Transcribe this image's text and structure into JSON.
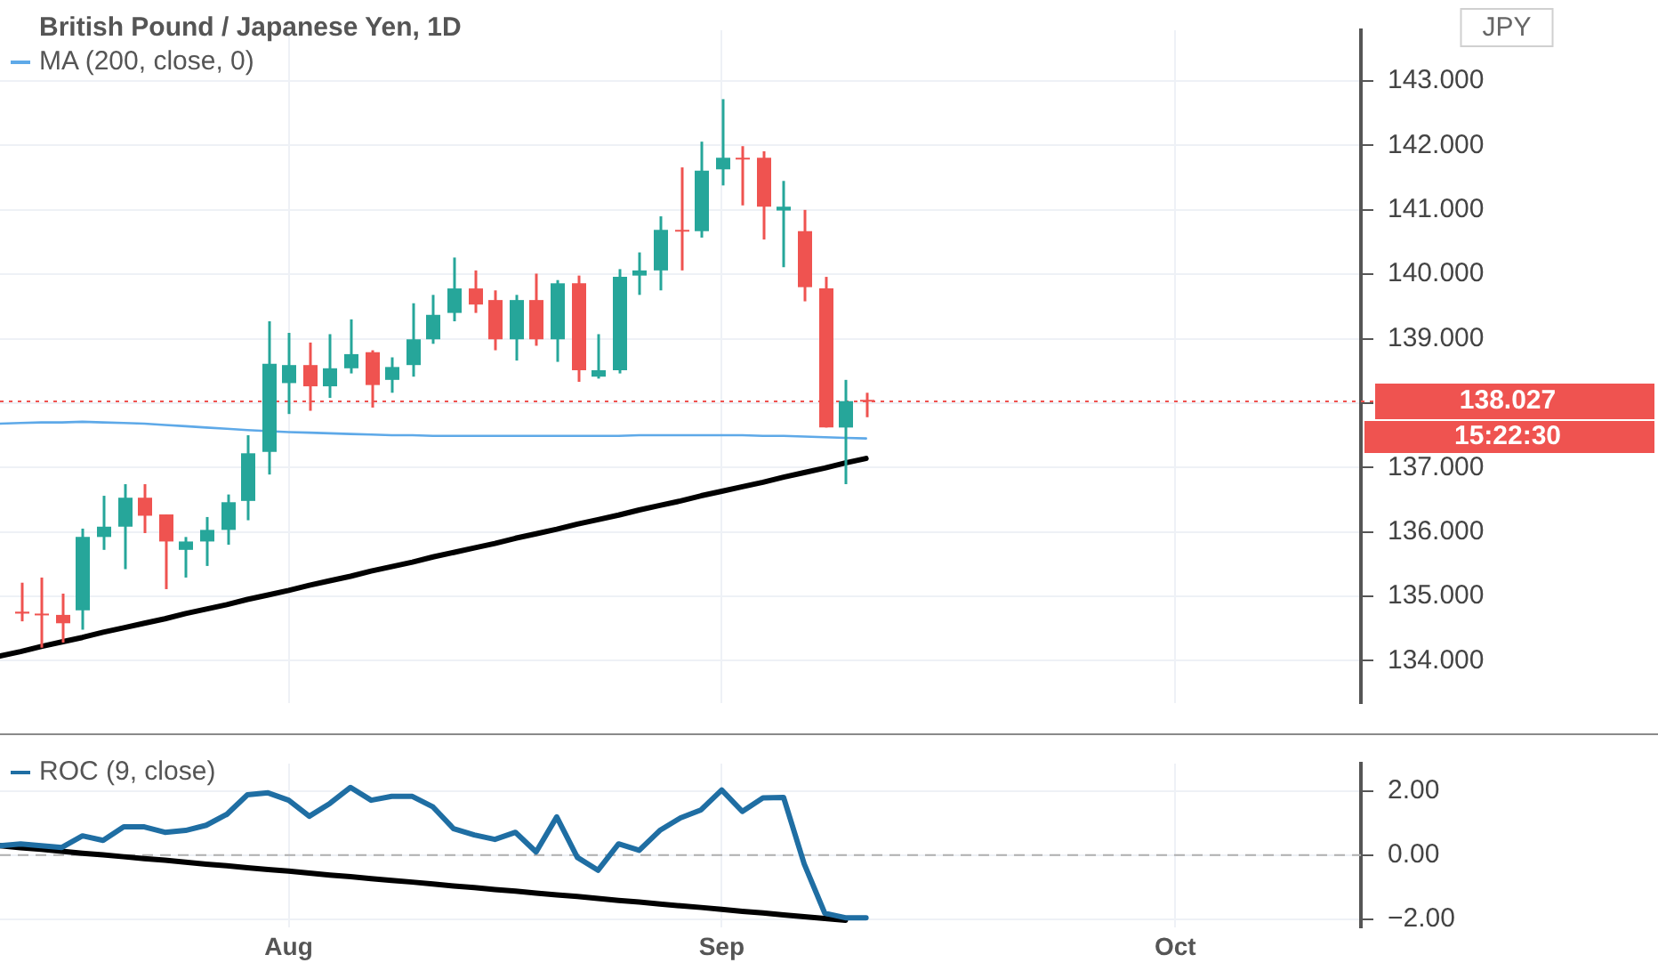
{
  "chart_data": [
    {
      "type": "candlestick",
      "title": "British Pound / Japanese Yen, 1D",
      "ylabel": "JPY",
      "categories": [
        null,
        null,
        null,
        null,
        null,
        null,
        null,
        null,
        null,
        null,
        null,
        null,
        null,
        null,
        null,
        null,
        null,
        null,
        null,
        null,
        null,
        null,
        null,
        null,
        null,
        null,
        null,
        null,
        null,
        null,
        null,
        null,
        null,
        null,
        null,
        null,
        null,
        null,
        null,
        null,
        null,
        null,
        null,
        null,
        null,
        null,
        null,
        null,
        null,
        null,
        null,
        null,
        null,
        null,
        null,
        null,
        null,
        null,
        null,
        null,
        null,
        null,
        null,
        null,
        null,
        null,
        null
      ],
      "ohlc": [
        null,
        [
          134.76,
          135.21,
          134.61,
          134.73
        ],
        [
          134.73,
          135.29,
          134.2,
          134.71
        ],
        [
          134.71,
          135.04,
          134.28,
          134.58
        ],
        [
          134.78,
          136.05,
          134.48,
          135.92
        ],
        [
          135.92,
          136.56,
          135.72,
          136.08
        ],
        [
          136.08,
          136.74,
          135.42,
          136.53
        ],
        [
          136.53,
          136.74,
          135.98,
          136.25
        ],
        [
          136.27,
          136.27,
          135.11,
          135.85
        ],
        [
          135.72,
          135.92,
          135.29,
          135.85
        ],
        [
          135.85,
          136.23,
          135.47,
          136.03
        ],
        [
          136.03,
          136.58,
          135.8,
          136.46
        ],
        [
          136.48,
          137.5,
          136.18,
          137.22
        ],
        [
          137.24,
          139.27,
          136.89,
          138.61
        ],
        [
          138.31,
          139.09,
          137.83,
          138.59
        ],
        [
          138.59,
          138.94,
          137.88,
          138.26
        ],
        [
          138.26,
          139.07,
          138.08,
          138.54
        ],
        [
          138.54,
          139.3,
          138.46,
          138.76
        ],
        [
          138.79,
          138.82,
          137.93,
          138.28
        ],
        [
          138.36,
          138.71,
          138.16,
          138.56
        ],
        [
          138.59,
          139.55,
          138.41,
          138.99
        ],
        [
          138.99,
          139.68,
          138.92,
          139.37
        ],
        [
          139.4,
          140.26,
          139.27,
          139.78
        ],
        [
          139.78,
          140.06,
          139.4,
          139.53
        ],
        [
          139.6,
          139.75,
          138.82,
          138.99
        ],
        [
          138.99,
          139.68,
          138.66,
          139.6
        ],
        [
          139.6,
          140.01,
          138.89,
          138.99
        ],
        [
          138.99,
          139.91,
          138.64,
          139.86
        ],
        [
          139.86,
          139.98,
          138.33,
          138.51
        ],
        [
          138.41,
          139.07,
          138.38,
          138.51
        ],
        [
          138.51,
          140.08,
          138.46,
          139.96
        ],
        [
          139.98,
          140.34,
          139.68,
          140.06
        ],
        [
          140.06,
          140.9,
          139.75,
          140.69
        ],
        [
          140.69,
          141.66,
          140.06,
          140.67
        ],
        [
          140.67,
          142.06,
          140.57,
          141.61
        ],
        [
          141.63,
          142.72,
          141.38,
          141.81
        ],
        [
          141.81,
          141.99,
          141.07,
          141.79
        ],
        [
          141.81,
          141.91,
          140.54,
          141.05
        ],
        [
          140.99,
          141.45,
          140.11,
          141.05
        ],
        [
          140.67,
          141.0,
          139.58,
          139.8
        ],
        [
          139.78,
          139.96,
          137.62,
          137.62
        ],
        [
          137.62,
          138.36,
          136.74,
          138.03
        ],
        [
          138.05,
          138.16,
          137.78,
          138.03
        ],
        null,
        null,
        null,
        null,
        null,
        null,
        null,
        null,
        null,
        null,
        null,
        null,
        null,
        null,
        null,
        null,
        null,
        null,
        null,
        null,
        null,
        null,
        null,
        null
      ],
      "colors": [
        null,
        "#ef5350",
        "#ef5350",
        "#ef5350",
        "#26a69a",
        "#26a69a",
        "#26a69a",
        "#ef5350",
        "#ef5350",
        "#26a69a",
        "#26a69a",
        "#26a69a",
        "#26a69a",
        "#26a69a",
        "#26a69a",
        "#ef5350",
        "#26a69a",
        "#26a69a",
        "#ef5350",
        "#26a69a",
        "#26a69a",
        "#26a69a",
        "#26a69a",
        "#ef5350",
        "#ef5350",
        "#26a69a",
        "#ef5350",
        "#26a69a",
        "#ef5350",
        "#26a69a",
        "#26a69a",
        "#26a69a",
        "#26a69a",
        "#ef5350",
        "#26a69a",
        "#26a69a",
        "#ef5350",
        "#ef5350",
        "#26a69a",
        "#ef5350",
        "#ef5350",
        "#26a69a",
        "#ef5350",
        null,
        null,
        null,
        null,
        null,
        null,
        null,
        null,
        null,
        null,
        null,
        null,
        null,
        null,
        null,
        null,
        null,
        null,
        null,
        null,
        null,
        null,
        null,
        null
      ],
      "series": [
        {
          "name": "MA (200, close, 0)",
          "type": "line",
          "color": "#5ea9e8",
          "values": [
            137.68,
            137.69,
            137.7,
            137.7,
            137.71,
            137.7,
            137.69,
            137.68,
            137.66,
            137.64,
            137.62,
            137.6,
            137.58,
            null,
            137.55,
            137.54,
            137.53,
            137.52,
            137.51,
            137.5,
            137.5,
            137.49,
            137.49,
            137.49,
            137.49,
            137.49,
            137.49,
            137.49,
            137.49,
            137.49,
            137.49,
            137.5,
            137.5,
            137.5,
            137.5,
            137.5,
            137.5,
            137.49,
            137.49,
            137.48,
            137.47,
            137.46,
            137.45,
            null,
            null,
            null,
            null,
            null,
            null,
            null,
            null,
            null,
            null,
            null,
            null,
            null,
            null,
            null,
            null,
            null,
            null,
            null,
            null,
            null,
            null,
            null,
            null
          ]
        },
        {
          "type": "line",
          "color": "#000000",
          "values": [
            134.07,
            134.14,
            134.22,
            134.29,
            134.36,
            134.44,
            134.51,
            134.58,
            134.65,
            134.73,
            134.8,
            134.87,
            134.95,
            135.02,
            135.09,
            135.17,
            135.24,
            135.31,
            135.39,
            135.46,
            135.53,
            135.61,
            135.68,
            135.75,
            135.82,
            135.9,
            135.97,
            136.04,
            136.12,
            136.19,
            136.26,
            136.34,
            136.41,
            136.48,
            136.56,
            136.63,
            136.7,
            136.77,
            136.85,
            136.92,
            136.99,
            137.07,
            137.14,
            null,
            null,
            null,
            null,
            null,
            null,
            null,
            null,
            null,
            null,
            null,
            null,
            null,
            null,
            null,
            null,
            null,
            null,
            null,
            null,
            null,
            null,
            null,
            null
          ]
        }
      ],
      "ylim": [
        133.34,
        143.79
      ],
      "yticks": [
        {
          "value": 134,
          "label": "134.000"
        },
        {
          "value": 135,
          "label": "135.000"
        },
        {
          "value": 136,
          "label": "136.000"
        },
        {
          "value": 137,
          "label": "137.000"
        },
        {
          "value": 138,
          "label": null
        },
        {
          "value": 139,
          "label": "139.000"
        },
        {
          "value": 140,
          "label": "140.000"
        },
        {
          "value": 141,
          "label": "141.000"
        },
        {
          "value": 142,
          "label": "142.000"
        },
        {
          "value": 143,
          "label": "143.000"
        }
      ],
      "ref_lines": [
        {
          "axis": "y",
          "value": 138.027,
          "label": "138.027",
          "color": "#ef5350",
          "line_style": "dotted"
        }
      ],
      "annotations": [
        "15:22:30"
      ],
      "grid": true,
      "legend": "top left",
      "tick_labels": "y"
    },
    {
      "type": "line",
      "categories": [
        null,
        null,
        null,
        null,
        null,
        null,
        null,
        null,
        null,
        null,
        null,
        null,
        null,
        null,
        "Aug",
        null,
        null,
        null,
        null,
        null,
        null,
        null,
        null,
        null,
        null,
        null,
        null,
        null,
        null,
        null,
        null,
        null,
        null,
        null,
        null,
        "Sep",
        null,
        null,
        null,
        null,
        null,
        null,
        null,
        null,
        null,
        null,
        null,
        null,
        null,
        null,
        null,
        null,
        null,
        null,
        null,
        null,
        null,
        "Oct",
        null,
        null,
        null,
        null,
        null,
        null,
        null,
        null,
        null
      ],
      "series": [
        {
          "name": "ROC (9, close)",
          "color": "#1f6ea3",
          "values": [
            0.29,
            0.35,
            0.29,
            0.24,
            0.6,
            0.46,
            0.88,
            0.88,
            0.71,
            0.77,
            0.93,
            1.27,
            1.88,
            1.94,
            1.71,
            1.21,
            1.61,
            2.11,
            1.71,
            1.83,
            1.83,
            1.5,
            0.82,
            0.63,
            0.49,
            0.71,
            0.1,
            1.19,
            -0.07,
            -0.47,
            0.35,
            0.15,
            0.77,
            1.16,
            1.41,
            2.03,
            1.36,
            1.78,
            1.8,
            -0.27,
            -1.81,
            -1.95,
            -1.95,
            null,
            null,
            null,
            null,
            null,
            null,
            null,
            null,
            null,
            null,
            null,
            null,
            null,
            null,
            null,
            null,
            null,
            null,
            null,
            null,
            null,
            null,
            null,
            null
          ]
        },
        {
          "color": "#000000",
          "values": [
            0.29,
            0.23,
            0.18,
            0.12,
            0.06,
            0.01,
            -0.05,
            -0.11,
            -0.16,
            -0.22,
            -0.28,
            -0.33,
            -0.39,
            -0.45,
            -0.5,
            -0.56,
            -0.62,
            -0.67,
            -0.73,
            -0.79,
            -0.84,
            -0.9,
            -0.96,
            -1.01,
            -1.07,
            -1.12,
            -1.18,
            -1.24,
            -1.29,
            -1.35,
            -1.41,
            -1.46,
            -1.52,
            -1.58,
            -1.63,
            -1.69,
            -1.75,
            -1.8,
            -1.86,
            -1.92,
            -1.97,
            -2.03,
            null,
            null,
            null,
            null,
            null,
            null,
            null,
            null,
            null,
            null,
            null,
            null,
            null,
            null,
            null,
            null,
            null,
            null,
            null,
            null,
            null,
            null,
            null,
            null,
            null
          ]
        }
      ],
      "ylim": [
        -2.25,
        2.85
      ],
      "yticks": [
        {
          "value": -2,
          "label": "−2.00"
        },
        {
          "value": 0,
          "label": "0.00"
        },
        {
          "value": 2,
          "label": "2.00"
        }
      ],
      "ref_lines": [
        {
          "axis": "y",
          "value": 0,
          "color": "#b0b0b0",
          "line_style": "dashed"
        }
      ],
      "grid": true,
      "legend": "top left"
    }
  ]
}
